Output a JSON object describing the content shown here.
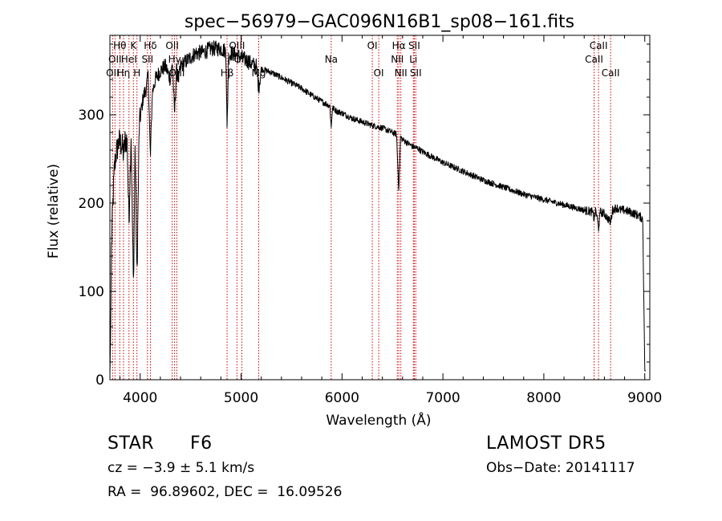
{
  "chart_data": {
    "type": "line",
    "title": "spec−56979−GAC096N16B1_sp08−161.fits",
    "xlabel": "Wavelength (Å)",
    "ylabel": "Flux (relative)",
    "xlim": [
      3700,
      9050
    ],
    "ylim": [
      0,
      390
    ],
    "x_ticks": [
      4000,
      5000,
      6000,
      7000,
      8000,
      9000
    ],
    "y_ticks": [
      0,
      100,
      200,
      300
    ],
    "grid": false,
    "line_color": "#000000",
    "marker_color": "#cc0000",
    "spectrum_anchors": {
      "x": [
        3700,
        3708,
        3715,
        3725,
        3735,
        3745,
        3760,
        3770,
        3790,
        3800,
        3820,
        3835,
        3850,
        3870,
        3889,
        3910,
        3933,
        3950,
        3968,
        3990,
        4005,
        4030,
        4060,
        4080,
        4101,
        4120,
        4150,
        4200,
        4250,
        4300,
        4320,
        4340,
        4360,
        4383,
        4400,
        4450,
        4500,
        4550,
        4600,
        4650,
        4700,
        4750,
        4800,
        4850,
        4861,
        4875,
        4900,
        4950,
        5000,
        5050,
        5100,
        5150,
        5175,
        5200,
        5250,
        5300,
        5400,
        5500,
        5600,
        5700,
        5800,
        5880,
        5893,
        5905,
        5950,
        6000,
        6100,
        6200,
        6300,
        6400,
        6500,
        6540,
        6563,
        6580,
        6600,
        6650,
        6700,
        6750,
        6800,
        6900,
        7000,
        7200,
        7400,
        7600,
        7800,
        8000,
        8200,
        8400,
        8480,
        8498,
        8515,
        8542,
        8560,
        8600,
        8662,
        8680,
        8720,
        8760,
        8800,
        8850,
        8900,
        8950,
        8980,
        8990,
        9000,
        9010
      ],
      "y": [
        5,
        60,
        150,
        185,
        215,
        240,
        255,
        260,
        270,
        268,
        265,
        255,
        270,
        272,
        180,
        280,
        100,
        270,
        110,
        285,
        300,
        320,
        330,
        345,
        250,
        325,
        340,
        350,
        355,
        340,
        360,
        300,
        350,
        340,
        355,
        360,
        365,
        370,
        370,
        372,
        375,
        375,
        375,
        372,
        280,
        365,
        370,
        368,
        365,
        362,
        358,
        355,
        330,
        352,
        350,
        348,
        342,
        336,
        330,
        322,
        315,
        310,
        285,
        308,
        304,
        302,
        296,
        292,
        288,
        285,
        280,
        278,
        215,
        275,
        272,
        268,
        264,
        262,
        258,
        252,
        246,
        236,
        226,
        218,
        210,
        204,
        198,
        192,
        190,
        182,
        192,
        172,
        190,
        188,
        178,
        192,
        195,
        192,
        192,
        190,
        188,
        185,
        182,
        100,
        10,
        10
      ]
    },
    "lines": [
      {
        "wl": 3727,
        "label": "OII",
        "row": 2
      },
      {
        "wl": 3750,
        "label": "OII",
        "row": 1
      },
      {
        "wl": 3798,
        "label": "Hθ",
        "row": 0
      },
      {
        "wl": 3835,
        "label": "Hη",
        "row": 2
      },
      {
        "wl": 3889,
        "label": "HeI",
        "row": 1
      },
      {
        "wl": 3933,
        "label": "K",
        "row": 0
      },
      {
        "wl": 3968,
        "label": "H",
        "row": 2
      },
      {
        "wl": 4072,
        "label": "SII",
        "row": 1
      },
      {
        "wl": 4101,
        "label": "Hδ",
        "row": 0
      },
      {
        "wl": 4317,
        "label": "OII",
        "row": 0
      },
      {
        "wl": 4341,
        "label": "Hγ",
        "row": 1
      },
      {
        "wl": 4363,
        "label": "OIII",
        "row": 2
      },
      {
        "wl": 4861,
        "label": "Hβ",
        "row": 2
      },
      {
        "wl": 4959,
        "label": "OIII",
        "row": 0
      },
      {
        "wl": 5007,
        "label": "OIII",
        "row": 1
      },
      {
        "wl": 5175,
        "label": "Mg",
        "row": 2
      },
      {
        "wl": 5893,
        "label": "Na",
        "row": 1
      },
      {
        "wl": 6300,
        "label": "OI",
        "row": 0
      },
      {
        "wl": 6364,
        "label": "OI",
        "row": 2
      },
      {
        "wl": 6548,
        "label": "NII",
        "row": 1
      },
      {
        "wl": 6563,
        "label": "Hα",
        "row": 0
      },
      {
        "wl": 6583,
        "label": "NII",
        "row": 2
      },
      {
        "wl": 6707,
        "label": "Li",
        "row": 1
      },
      {
        "wl": 6716,
        "label": "SII",
        "row": 0
      },
      {
        "wl": 6731,
        "label": "SII",
        "row": 2
      },
      {
        "wl": 8498,
        "label": "CaII",
        "row": 1
      },
      {
        "wl": 8542,
        "label": "CaII",
        "row": 0
      },
      {
        "wl": 8662,
        "label": "CaII",
        "row": 2
      }
    ]
  },
  "info": {
    "object_class": "STAR",
    "subclass": "F6",
    "survey": "LAMOST DR5",
    "cz": "cz = −3.9 ± 5.1 km/s",
    "obs_date": "Obs−Date: 20141117",
    "coords": "RA =  96.89602, DEC =  16.09526"
  }
}
